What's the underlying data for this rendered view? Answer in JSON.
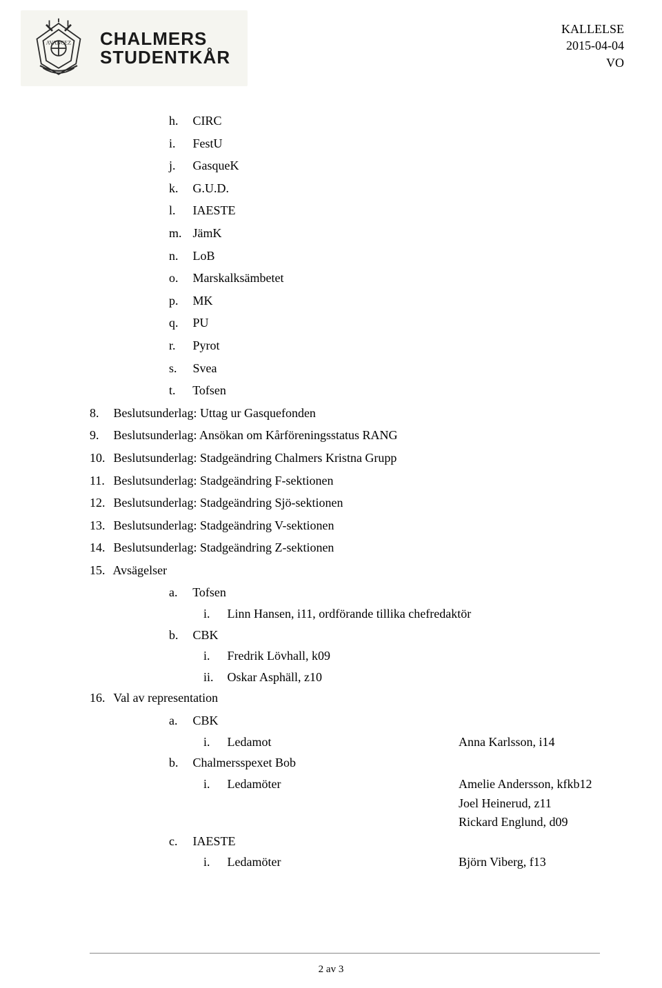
{
  "header": {
    "wordmark_line1": "CHALMERS",
    "wordmark_line2": "STUDENTKÅR",
    "doc_type": "KALLELSE",
    "date": "2015-04-04",
    "author": "VO"
  },
  "sublist7": [
    {
      "m": "h.",
      "t": "CIRC"
    },
    {
      "m": "i.",
      "t": "FestU"
    },
    {
      "m": "j.",
      "t": "GasqueK"
    },
    {
      "m": "k.",
      "t": "G.U.D."
    },
    {
      "m": "l.",
      "t": "IAESTE"
    },
    {
      "m": "m.",
      "t": "JämK"
    },
    {
      "m": "n.",
      "t": "LoB"
    },
    {
      "m": "o.",
      "t": "Marskalksämbetet"
    },
    {
      "m": "p.",
      "t": "MK"
    },
    {
      "m": "q.",
      "t": "PU"
    },
    {
      "m": "r.",
      "t": "Pyrot"
    },
    {
      "m": "s.",
      "t": "Svea"
    },
    {
      "m": "t.",
      "t": "Tofsen"
    }
  ],
  "items": [
    {
      "m": "8.",
      "t": "Beslutsunderlag: Uttag ur Gasquefonden"
    },
    {
      "m": "9.",
      "t": "Beslutsunderlag: Ansökan om Kårföreningsstatus RANG"
    },
    {
      "m": "10.",
      "t": "Beslutsunderlag: Stadgeändring Chalmers Kristna Grupp"
    },
    {
      "m": "11.",
      "t": "Beslutsunderlag: Stadgeändring F-sektionen"
    },
    {
      "m": "12.",
      "t": "Beslutsunderlag: Stadgeändring Sjö-sektionen"
    },
    {
      "m": "13.",
      "t": "Beslutsunderlag: Stadgeändring V-sektionen"
    },
    {
      "m": "14.",
      "t": "Beslutsunderlag: Stadgeändring Z-sektionen"
    }
  ],
  "item15": {
    "m": "15.",
    "t": "Avsägelser"
  },
  "item15a": {
    "m": "a.",
    "t": "Tofsen"
  },
  "item15a_i": {
    "m": "i.",
    "t": "Linn Hansen, i11, ordförande tillika chefredaktör"
  },
  "item15b": {
    "m": "b.",
    "t": "CBK"
  },
  "item15b_i": {
    "m": "i.",
    "t": "Fredrik Lövhall, k09"
  },
  "item15b_ii": {
    "m": "ii.",
    "t": "Oskar Asphäll, z10"
  },
  "item16": {
    "m": "16.",
    "t": "Val av representation"
  },
  "item16a": {
    "m": "a.",
    "t": "CBK"
  },
  "item16a_i": {
    "m": "i.",
    "t": "Ledamot",
    "r": "Anna Karlsson, i14"
  },
  "item16b": {
    "m": "b.",
    "t": "Chalmersspexet Bob"
  },
  "item16b_i": {
    "m": "i.",
    "t": "Ledamöter",
    "r": "Amelie Andersson, kfkb12"
  },
  "item16b_i_r2": "Joel Heinerud, z11",
  "item16b_i_r3": "Rickard Englund, d09",
  "item16c": {
    "m": "c.",
    "t": "IAESTE"
  },
  "item16c_i": {
    "m": "i.",
    "t": "Ledamöter",
    "r": "Björn Viberg, f13"
  },
  "page_num": "2 av 3"
}
